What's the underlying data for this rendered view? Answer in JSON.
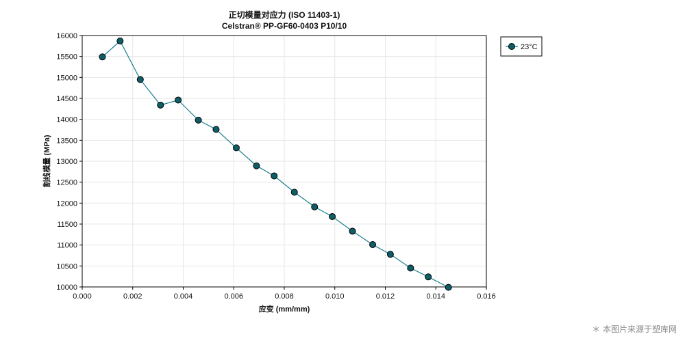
{
  "chart_data": {
    "type": "line",
    "title": "正切模量对应力 (ISO 11403-1)",
    "subtitle": "Celstran® PP-GF60-0403 P10/10",
    "xlabel": "应变 (mm/mm)",
    "ylabel": "割线模量 (MPa)",
    "xlim": [
      0,
      0.016
    ],
    "ylim": [
      10000,
      16000
    ],
    "x_ticks": [
      "0.000",
      "0.002",
      "0.004",
      "0.006",
      "0.008",
      "0.010",
      "0.012",
      "0.014",
      "0.016"
    ],
    "y_ticks": [
      "10000",
      "10500",
      "11000",
      "11500",
      "12000",
      "12500",
      "13000",
      "13500",
      "14000",
      "14500",
      "15000",
      "15500",
      "16000"
    ],
    "grid": true,
    "legend_position": "top-right-outside",
    "series": [
      {
        "name": "23°C",
        "color": "#1a7f8c",
        "marker_color": "#0d5e66",
        "x": [
          0.0008,
          0.0015,
          0.0023,
          0.0031,
          0.0038,
          0.0046,
          0.0053,
          0.0061,
          0.0069,
          0.0076,
          0.0084,
          0.0092,
          0.0099,
          0.0107,
          0.0115,
          0.0122,
          0.013,
          0.0137,
          0.0145
        ],
        "y": [
          15490,
          15870,
          14950,
          14340,
          14460,
          13980,
          13760,
          13320,
          12890,
          12650,
          12260,
          11910,
          11680,
          11330,
          11010,
          10780,
          10450,
          10240,
          9990
        ]
      }
    ]
  },
  "watermark": "＊ 本图片来源于塑库网"
}
